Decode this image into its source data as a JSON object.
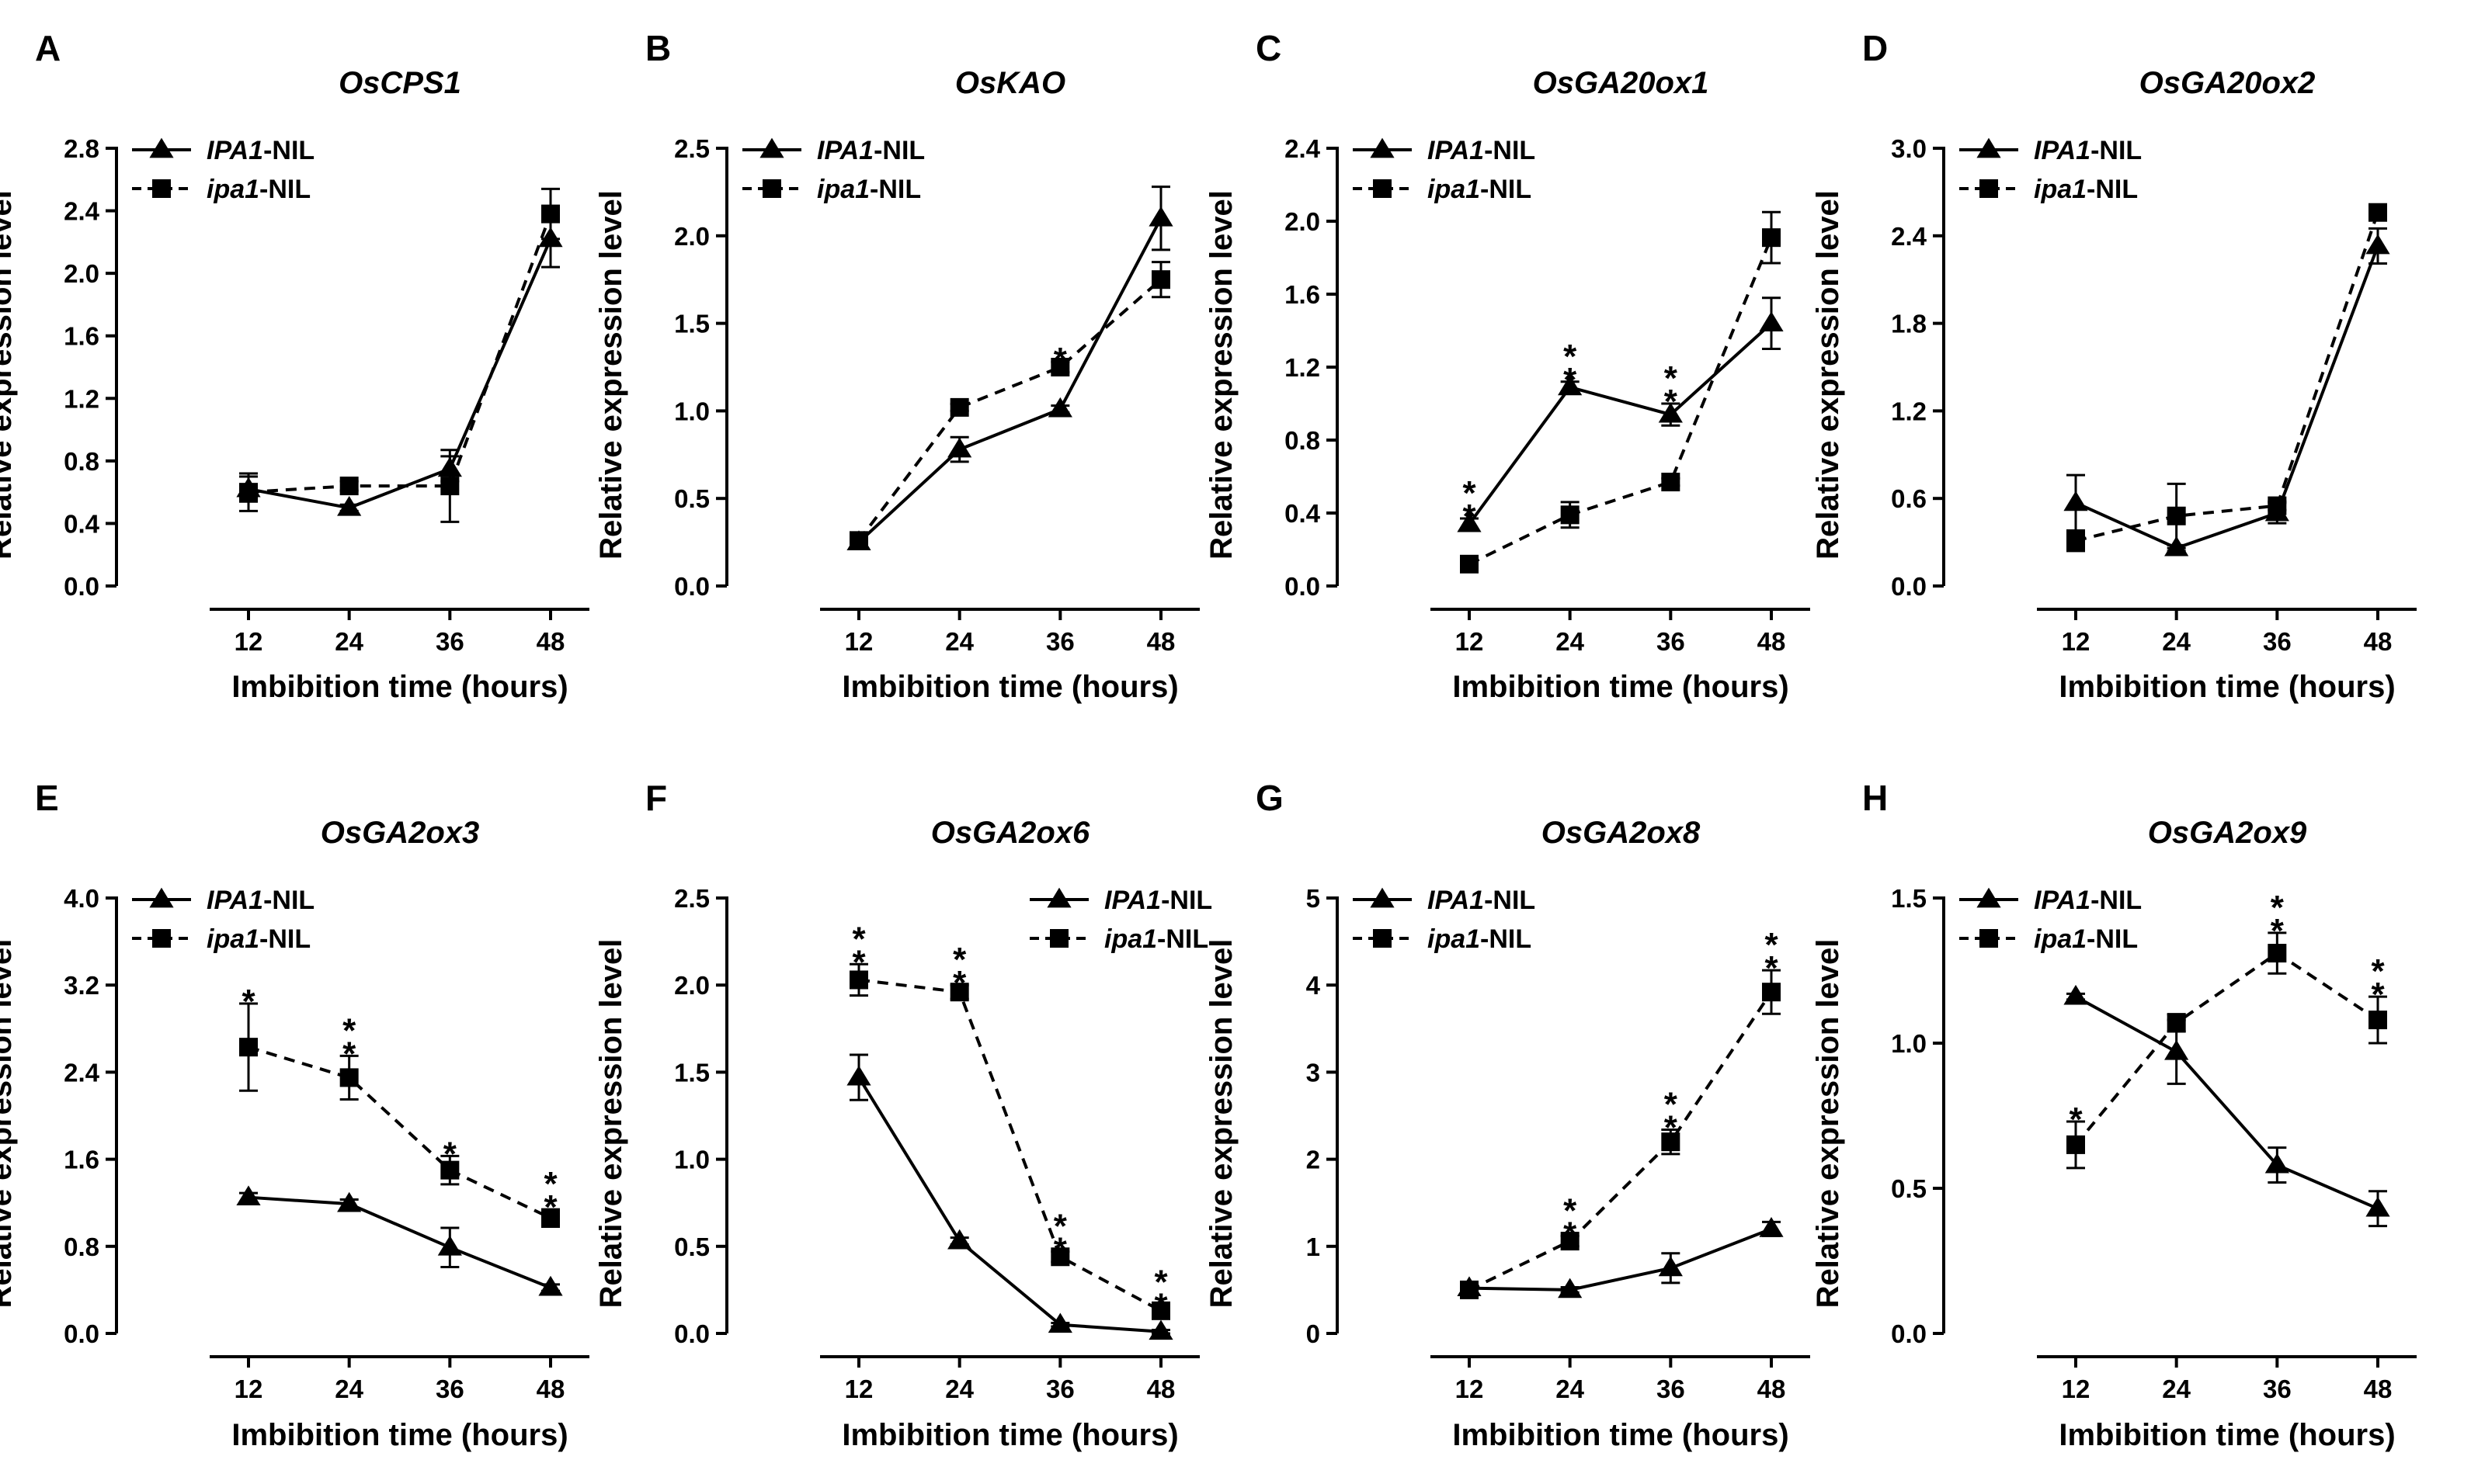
{
  "figure": {
    "x_axis_title": "Imbibition time (hours)",
    "y_axis_title": "Relative expression level"
  },
  "chart_data": [
    {
      "type": "line",
      "panel": "A",
      "title": "OsCPS1",
      "xlabel": "Imbibition time (hours)",
      "ylabel": "Relative expression level",
      "categories": [
        12,
        24,
        36,
        48
      ],
      "ylim": [
        0,
        2.8
      ],
      "yticks": [
        0.0,
        0.4,
        0.8,
        1.2,
        1.6,
        2.0,
        2.4,
        2.8
      ],
      "ytick_labels": [
        "0.0",
        "0.4",
        "0.8",
        "1.2",
        "1.6",
        "2.0",
        "2.4",
        "2.8"
      ],
      "legend_position": "top-left",
      "series": [
        {
          "name": "IPA1-NIL",
          "name_italic": "IPA1",
          "name_suffix": "-NIL",
          "marker": "triangle",
          "line": "solid",
          "values": [
            0.62,
            0.5,
            0.75,
            2.22
          ],
          "errors": [
            0.08,
            0.02,
            0.08,
            0.18
          ],
          "stars": [
            "",
            "",
            "",
            ""
          ]
        },
        {
          "name": "ipa1-NIL",
          "name_italic": "ipa1",
          "name_suffix": "-NIL",
          "marker": "square",
          "line": "dashed",
          "values": [
            0.6,
            0.64,
            0.64,
            2.38
          ],
          "errors": [
            0.12,
            0.03,
            0.23,
            0.16
          ],
          "stars": [
            "",
            "",
            "",
            ""
          ]
        }
      ]
    },
    {
      "type": "line",
      "panel": "B",
      "title": "OsKAO",
      "xlabel": "Imbibition time (hours)",
      "ylabel": "Relative expression level",
      "categories": [
        12,
        24,
        36,
        48
      ],
      "ylim": [
        0,
        2.5
      ],
      "yticks": [
        0.0,
        0.5,
        1.0,
        1.5,
        2.0,
        2.5
      ],
      "ytick_labels": [
        "0.0",
        "0.5",
        "1.0",
        "1.5",
        "2.0",
        "2.5"
      ],
      "legend_position": "top-left",
      "series": [
        {
          "name": "IPA1-NIL",
          "name_italic": "IPA1",
          "name_suffix": "-NIL",
          "marker": "triangle",
          "line": "solid",
          "values": [
            0.25,
            0.78,
            1.01,
            2.1
          ],
          "errors": [
            0.02,
            0.07,
            0.02,
            0.18
          ],
          "stars": [
            "",
            "",
            "",
            ""
          ]
        },
        {
          "name": "ipa1-NIL",
          "name_italic": "ipa1",
          "name_suffix": "-NIL",
          "marker": "square",
          "line": "dashed",
          "values": [
            0.26,
            1.02,
            1.25,
            1.75
          ],
          "errors": [
            0.02,
            0.02,
            0.03,
            0.1
          ],
          "stars": [
            "",
            "",
            "*",
            ""
          ]
        }
      ]
    },
    {
      "type": "line",
      "panel": "C",
      "title": "OsGA20ox1",
      "xlabel": "Imbibition time (hours)",
      "ylabel": "Relative expression level",
      "categories": [
        12,
        24,
        36,
        48
      ],
      "ylim": [
        0,
        2.4
      ],
      "yticks": [
        0.0,
        0.4,
        0.8,
        1.2,
        1.6,
        2.0,
        2.4
      ],
      "ytick_labels": [
        "0.0",
        "0.4",
        "0.8",
        "1.2",
        "1.6",
        "2.0",
        "2.4"
      ],
      "legend_position": "top-left",
      "series": [
        {
          "name": "IPA1-NIL",
          "name_italic": "IPA1",
          "name_suffix": "-NIL",
          "marker": "triangle",
          "line": "solid",
          "values": [
            0.34,
            1.09,
            0.94,
            1.44
          ],
          "errors": [
            0.03,
            0.03,
            0.06,
            0.14
          ],
          "stars": [
            "**",
            "**",
            "**",
            ""
          ]
        },
        {
          "name": "ipa1-NIL",
          "name_italic": "ipa1",
          "name_suffix": "-NIL",
          "marker": "square",
          "line": "dashed",
          "values": [
            0.12,
            0.39,
            0.57,
            1.91
          ],
          "errors": [
            0.01,
            0.07,
            0.02,
            0.14
          ],
          "stars": [
            "",
            "",
            "",
            ""
          ]
        }
      ]
    },
    {
      "type": "line",
      "panel": "D",
      "title": "OsGA20ox2",
      "xlabel": "Imbibition time (hours)",
      "ylabel": "Relative expression level",
      "categories": [
        12,
        24,
        36,
        48
      ],
      "ylim": [
        0,
        3.0
      ],
      "yticks": [
        0.0,
        0.6,
        1.2,
        1.8,
        2.4,
        3.0
      ],
      "ytick_labels": [
        "0.0",
        "0.6",
        "1.2",
        "1.8",
        "2.4",
        "3.0"
      ],
      "legend_position": "top-left",
      "series": [
        {
          "name": "IPA1-NIL",
          "name_italic": "IPA1",
          "name_suffix": "-NIL",
          "marker": "triangle",
          "line": "solid",
          "values": [
            0.57,
            0.26,
            0.5,
            2.33
          ],
          "errors": [
            0.19,
            0.02,
            0.07,
            0.12
          ],
          "stars": [
            "",
            "",
            "",
            ""
          ]
        },
        {
          "name": "ipa1-NIL",
          "name_italic": "ipa1",
          "name_suffix": "-NIL",
          "marker": "square",
          "line": "dashed",
          "values": [
            0.31,
            0.48,
            0.55,
            2.56
          ],
          "errors": [
            0.07,
            0.22,
            0.03,
            0.03
          ],
          "stars": [
            "",
            "",
            "",
            ""
          ]
        }
      ]
    },
    {
      "type": "line",
      "panel": "E",
      "title": "OsGA2ox3",
      "xlabel": "Imbibition time (hours)",
      "ylabel": "Relative expression level",
      "categories": [
        12,
        24,
        36,
        48
      ],
      "ylim": [
        0,
        4.0
      ],
      "yticks": [
        0.0,
        0.8,
        1.6,
        2.4,
        3.2,
        4.0
      ],
      "ytick_labels": [
        "0.0",
        "0.8",
        "1.6",
        "2.4",
        "3.2",
        "4.0"
      ],
      "legend_position": "top-left",
      "series": [
        {
          "name": "IPA1-NIL",
          "name_italic": "IPA1",
          "name_suffix": "-NIL",
          "marker": "triangle",
          "line": "solid",
          "values": [
            1.25,
            1.19,
            0.79,
            0.42
          ],
          "errors": [
            0.04,
            0.04,
            0.18,
            0.03
          ],
          "stars": [
            "",
            "",
            "",
            ""
          ]
        },
        {
          "name": "ipa1-NIL",
          "name_italic": "ipa1",
          "name_suffix": "-NIL",
          "marker": "square",
          "line": "dashed",
          "values": [
            2.63,
            2.35,
            1.5,
            1.06
          ],
          "errors": [
            0.4,
            0.2,
            0.13,
            0.08
          ],
          "stars": [
            "*",
            "**",
            "*",
            "**"
          ]
        }
      ]
    },
    {
      "type": "line",
      "panel": "F",
      "title": "OsGA2ox6",
      "xlabel": "Imbibition time (hours)",
      "ylabel": "Relative expression level",
      "categories": [
        12,
        24,
        36,
        48
      ],
      "ylim": [
        0,
        2.5
      ],
      "yticks": [
        0.0,
        0.5,
        1.0,
        1.5,
        2.0,
        2.5
      ],
      "ytick_labels": [
        "0.0",
        "0.5",
        "1.0",
        "1.5",
        "2.0",
        "2.5"
      ],
      "legend_position": "top-right",
      "series": [
        {
          "name": "IPA1-NIL",
          "name_italic": "IPA1",
          "name_suffix": "-NIL",
          "marker": "triangle",
          "line": "solid",
          "values": [
            1.47,
            0.53,
            0.05,
            0.01
          ],
          "errors": [
            0.13,
            0.02,
            0.01,
            0.01
          ],
          "stars": [
            "",
            "",
            "",
            ""
          ]
        },
        {
          "name": "ipa1-NIL",
          "name_italic": "ipa1",
          "name_suffix": "-NIL",
          "marker": "square",
          "line": "dashed",
          "values": [
            2.03,
            1.96,
            0.44,
            0.13
          ],
          "errors": [
            0.09,
            0.04,
            0.03,
            0.02
          ],
          "stars": [
            "**",
            "**",
            "**",
            "**"
          ]
        }
      ]
    },
    {
      "type": "line",
      "panel": "G",
      "title": "OsGA2ox8",
      "xlabel": "Imbibition time (hours)",
      "ylabel": "Relative expression level",
      "categories": [
        12,
        24,
        36,
        48
      ],
      "ylim": [
        0,
        5
      ],
      "yticks": [
        0,
        1,
        2,
        3,
        4,
        5
      ],
      "ytick_labels": [
        "0",
        "1",
        "2",
        "3",
        "4",
        "5"
      ],
      "legend_position": "top-left",
      "series": [
        {
          "name": "IPA1-NIL",
          "name_italic": "IPA1",
          "name_suffix": "-NIL",
          "marker": "triangle",
          "line": "solid",
          "values": [
            0.52,
            0.5,
            0.75,
            1.2
          ],
          "errors": [
            0.04,
            0.03,
            0.17,
            0.08
          ],
          "stars": [
            "",
            "",
            "",
            ""
          ]
        },
        {
          "name": "ipa1-NIL",
          "name_italic": "ipa1",
          "name_suffix": "-NIL",
          "marker": "square",
          "line": "dashed",
          "values": [
            0.5,
            1.06,
            2.2,
            3.92
          ],
          "errors": [
            0.04,
            0.06,
            0.14,
            0.25
          ],
          "stars": [
            "",
            "**",
            "**",
            "**"
          ]
        }
      ]
    },
    {
      "type": "line",
      "panel": "H",
      "title": "OsGA2ox9",
      "xlabel": "Imbibition time (hours)",
      "ylabel": "Relative expression level",
      "categories": [
        12,
        24,
        36,
        48
      ],
      "ylim": [
        0,
        1.5
      ],
      "yticks": [
        0.0,
        0.5,
        1.0,
        1.5
      ],
      "ytick_labels": [
        "0.0",
        "0.5",
        "1.0",
        "1.5"
      ],
      "legend_position": "top-left",
      "series": [
        {
          "name": "IPA1-NIL",
          "name_italic": "IPA1",
          "name_suffix": "-NIL",
          "marker": "triangle",
          "line": "solid",
          "values": [
            1.16,
            0.97,
            0.58,
            0.43
          ],
          "errors": [
            0.01,
            0.11,
            0.06,
            0.06
          ],
          "stars": [
            "",
            "",
            "",
            ""
          ]
        },
        {
          "name": "ipa1-NIL",
          "name_italic": "ipa1",
          "name_suffix": "-NIL",
          "marker": "square",
          "line": "dashed",
          "values": [
            0.65,
            1.07,
            1.31,
            1.08
          ],
          "errors": [
            0.08,
            0.03,
            0.07,
            0.08
          ],
          "stars": [
            "*",
            "",
            "**",
            "**"
          ]
        }
      ]
    }
  ]
}
